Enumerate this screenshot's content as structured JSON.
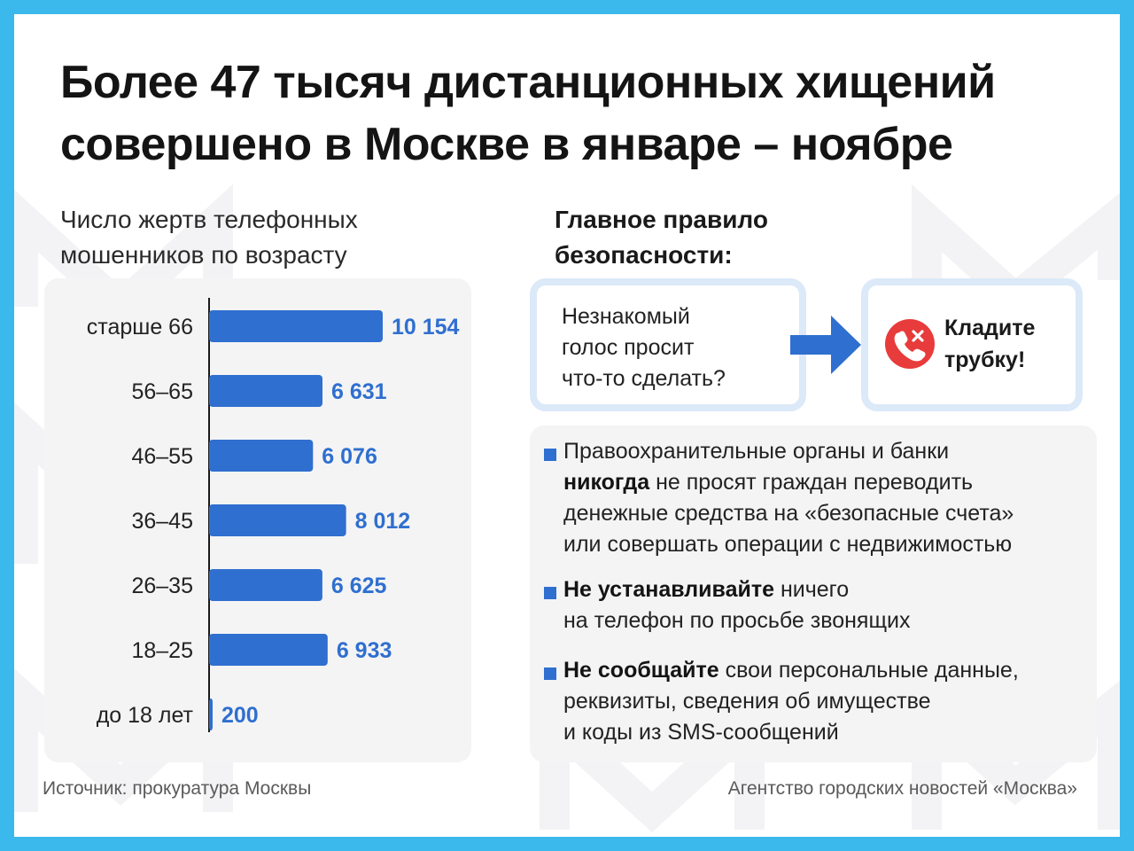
{
  "title": {
    "line1": "Более 47 тысяч дистанционных хищений",
    "line2": "совершено в Москве в январе – ноябре"
  },
  "chart_heading": {
    "line1": "Число жертв телефонных",
    "line2": "мошенников по возрасту"
  },
  "chart_data": {
    "type": "bar",
    "orientation": "horizontal",
    "title": "Число жертв телефонных мошенников по возрасту",
    "categories": [
      "старше 66",
      "56–65",
      "46–55",
      "36–45",
      "26–35",
      "18–25",
      "до 18 лет"
    ],
    "values": [
      10154,
      6631,
      6076,
      8012,
      6625,
      6933,
      200
    ],
    "value_labels": [
      "10 154",
      "6 631",
      "6 076",
      "8 012",
      "6 625",
      "6 933",
      "200"
    ],
    "bar_color": "#2f6fcf",
    "label_color": "#2f6fcf",
    "grid": false
  },
  "rule": {
    "heading_line1": "Главное правило",
    "heading_line2": "безопасности:",
    "question_lines": [
      "Незнакомый",
      "голос просит",
      "что-то сделать?"
    ],
    "answer_lines": [
      "Кладите",
      "трубку!"
    ],
    "arrow_icon": "arrow-right-icon",
    "phone_icon": "hang-up-phone-icon",
    "accent_color": "#2f6fcf",
    "alert_color": "#e83b3b"
  },
  "tips": [
    {
      "lines": [
        {
          "bold": "",
          "text": "Правоохранительные органы и банки"
        },
        {
          "bold": "никогда",
          "text": " не просят граждан переводить"
        },
        {
          "bold": "",
          "text": "денежные средства на «безопасные счета»"
        },
        {
          "bold": "",
          "text": "или совершать операции с недвижимостью"
        }
      ]
    },
    {
      "lines": [
        {
          "bold": "Не устанавливайте",
          "text": " ничего"
        },
        {
          "bold": "",
          "text": "на телефон по просьбе звонящих"
        }
      ]
    },
    {
      "lines": [
        {
          "bold": "Не сообщайте",
          "text": " свои персональные данные,"
        },
        {
          "bold": "",
          "text": "реквизиты, сведения об имуществе"
        },
        {
          "bold": "",
          "text": "и коды из SMS-сообщений"
        }
      ]
    }
  ],
  "footer": {
    "source": "Источник: прокуратура Москвы",
    "agency": "Агентство городских новостей «Москва»"
  }
}
